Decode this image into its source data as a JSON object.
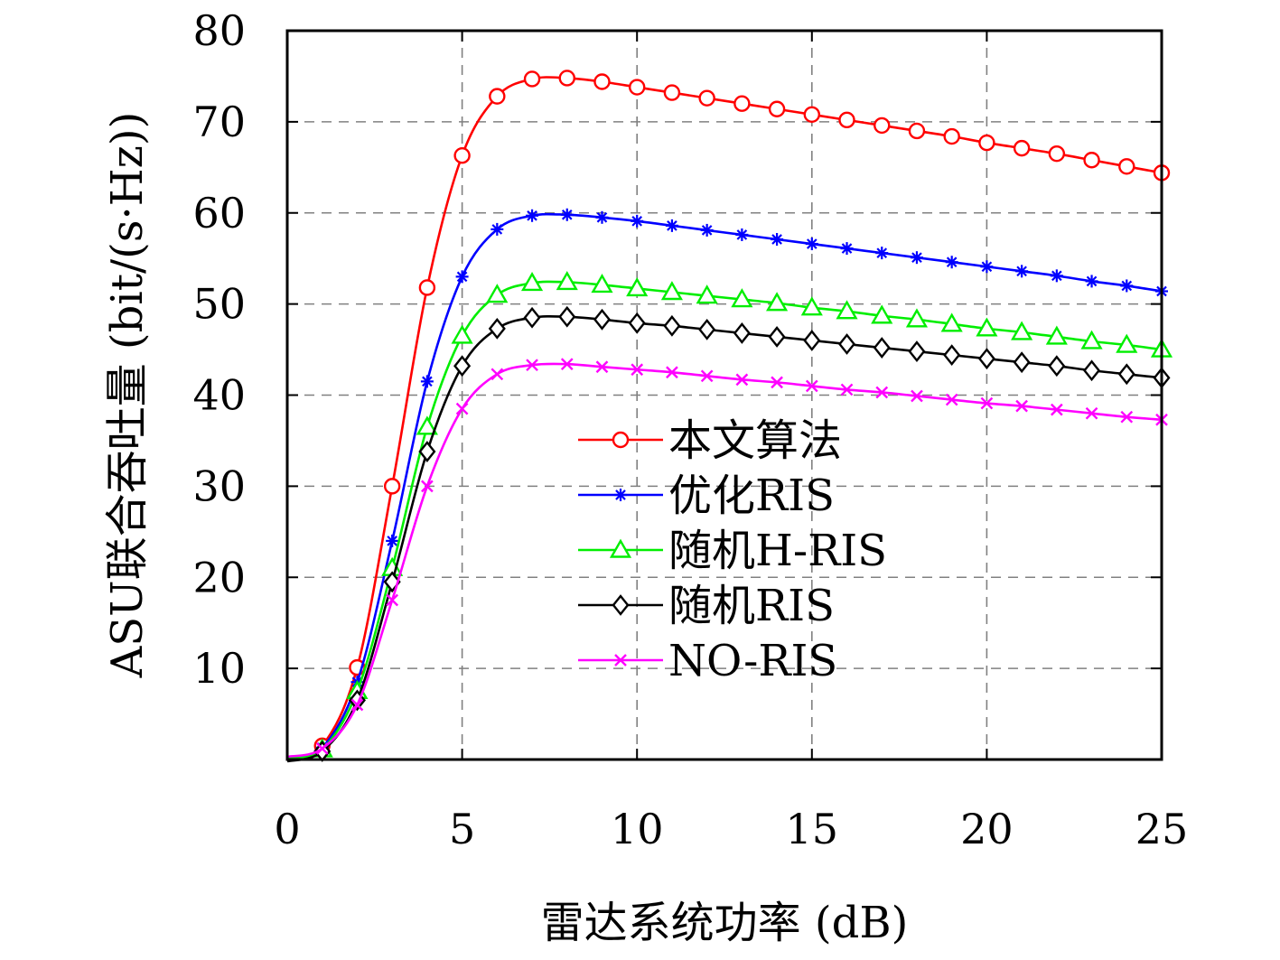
{
  "chart_data": {
    "type": "line",
    "xlabel": "雷达系统功率 (dB)",
    "ylabel": "ASU联合吞吐量 (bit/(s·Hz))",
    "xlim": [
      0,
      25
    ],
    "ylim": [
      0,
      80
    ],
    "xticks": [
      "0",
      "5",
      "10",
      "15",
      "20",
      "25"
    ],
    "yticks": [
      "10",
      "20",
      "30",
      "40",
      "50",
      "60",
      "70",
      "80"
    ],
    "grid": true,
    "legend_position": "center-right",
    "x": [
      0,
      1,
      2,
      3,
      4,
      5,
      6,
      7,
      8,
      9,
      10,
      11,
      12,
      13,
      14,
      15,
      16,
      17,
      18,
      19,
      20,
      21,
      22,
      23,
      24,
      25
    ],
    "series": [
      {
        "name": "本文算法",
        "color": "#ff0000",
        "marker": "circle",
        "values": [
          0.2,
          1.5,
          10.1,
          30.0,
          51.8,
          66.3,
          72.8,
          74.7,
          74.8,
          74.4,
          73.8,
          73.2,
          72.6,
          72.0,
          71.4,
          70.8,
          70.2,
          69.6,
          69.0,
          68.4,
          67.7,
          67.1,
          66.5,
          65.8,
          65.1,
          64.4
        ]
      },
      {
        "name": "优化RIS",
        "color": "#0000ff",
        "marker": "asterisk",
        "values": [
          0.3,
          1.3,
          8.5,
          24.0,
          41.5,
          53.0,
          58.2,
          59.7,
          59.8,
          59.5,
          59.1,
          58.6,
          58.1,
          57.6,
          57.1,
          56.6,
          56.1,
          55.6,
          55.1,
          54.6,
          54.1,
          53.6,
          53.1,
          52.5,
          52.0,
          51.4
        ]
      },
      {
        "name": "随机H-RIS",
        "color": "#00ee00",
        "marker": "triangle",
        "values": [
          0.1,
          1.1,
          7.5,
          21.0,
          36.5,
          46.5,
          51.0,
          52.3,
          52.4,
          52.1,
          51.7,
          51.3,
          50.9,
          50.5,
          50.1,
          49.6,
          49.2,
          48.7,
          48.3,
          47.8,
          47.3,
          46.9,
          46.4,
          45.9,
          45.5,
          45.0
        ]
      },
      {
        "name": "随机RIS",
        "color": "#000000",
        "marker": "diamond",
        "values": [
          -0.2,
          0.9,
          6.5,
          19.5,
          33.8,
          43.2,
          47.3,
          48.5,
          48.6,
          48.3,
          47.9,
          47.6,
          47.2,
          46.8,
          46.4,
          46.0,
          45.6,
          45.2,
          44.8,
          44.4,
          44.0,
          43.6,
          43.2,
          42.7,
          42.3,
          41.9
        ]
      },
      {
        "name": "NO-RIS",
        "color": "#ff00ff",
        "marker": "cross",
        "values": [
          0.3,
          1.2,
          6.0,
          17.5,
          30.0,
          38.5,
          42.3,
          43.3,
          43.4,
          43.1,
          42.8,
          42.5,
          42.1,
          41.7,
          41.4,
          41.0,
          40.6,
          40.3,
          39.9,
          39.5,
          39.1,
          38.8,
          38.4,
          38.0,
          37.6,
          37.3
        ]
      }
    ]
  }
}
